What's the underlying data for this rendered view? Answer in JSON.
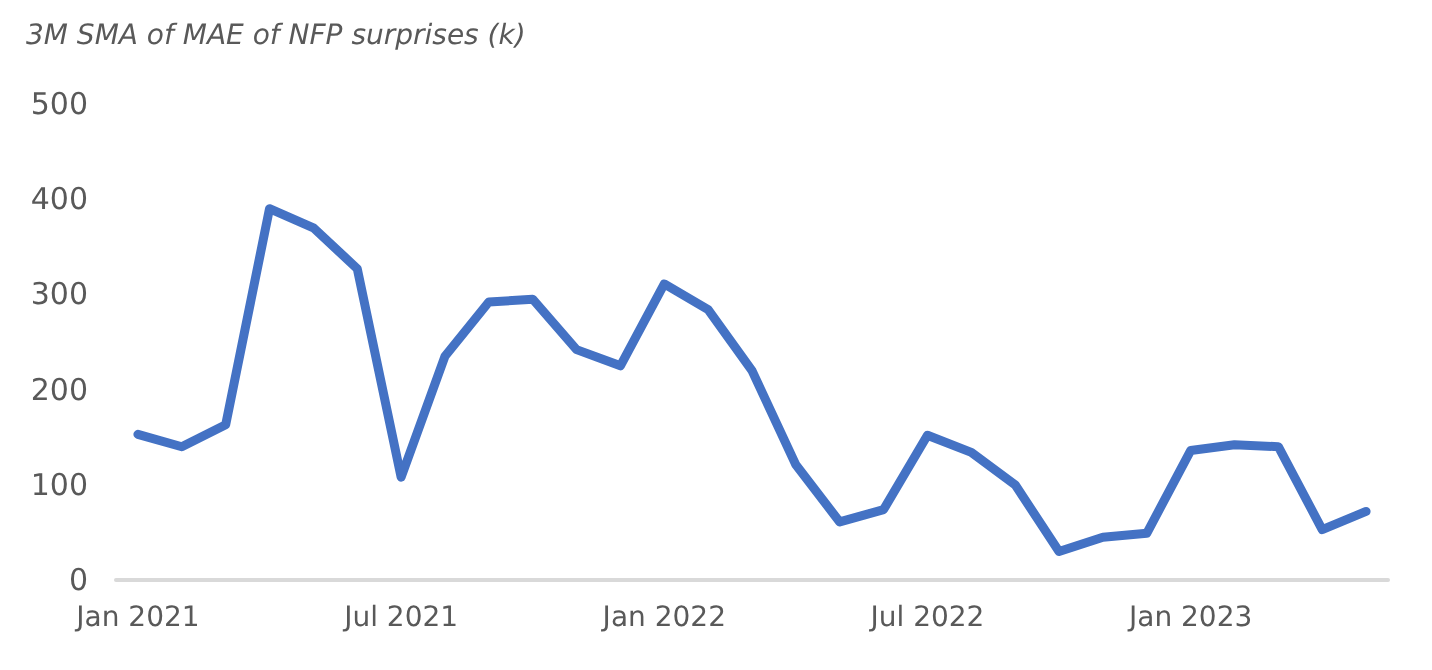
{
  "chart_data": {
    "type": "line",
    "title": "3M SMA of MAE of NFP surprises (k)",
    "categories": [
      "Jan 2021",
      null,
      null,
      null,
      null,
      null,
      "Jul 2021",
      null,
      null,
      null,
      null,
      null,
      "Jan 2022",
      null,
      null,
      null,
      null,
      null,
      "Jul 2022",
      null,
      null,
      null,
      null,
      null,
      "Jan 2023",
      null,
      null,
      null,
      null
    ],
    "series": [
      {
        "color": "#4472c4",
        "values": [
          153,
          140,
          163,
          390,
          370,
          327,
          108,
          235,
          292,
          295,
          242,
          225,
          311,
          284,
          220,
          121,
          61,
          74,
          152,
          134,
          100,
          30,
          45,
          49,
          136,
          142,
          140,
          53,
          72
        ]
      }
    ],
    "ylim": [
      0,
      500
    ],
    "yticks": [
      0,
      100,
      200,
      300,
      400,
      500
    ],
    "grid": false,
    "marker": "none",
    "line_style": "solid"
  }
}
